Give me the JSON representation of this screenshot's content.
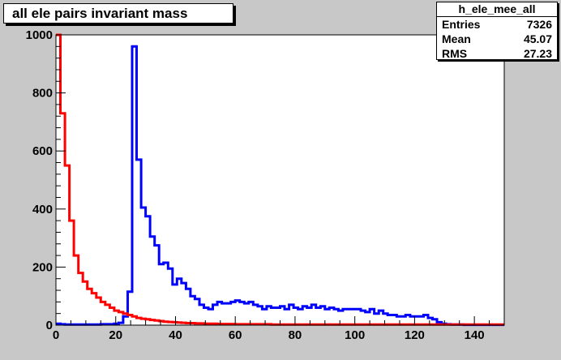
{
  "title": "all ele pairs invariant mass",
  "stats": {
    "name": "h_ele_mee_all",
    "rows": [
      {
        "label": "Entries",
        "value": "7326"
      },
      {
        "label": "Mean",
        "value": "45.07"
      },
      {
        "label": "RMS",
        "value": "27.23"
      }
    ]
  },
  "chart_data": {
    "type": "histogram",
    "title": "all ele pairs invariant mass",
    "xlim": [
      0,
      150
    ],
    "ylim": [
      0,
      1000
    ],
    "x_ticks": [
      "0",
      "20",
      "40",
      "60",
      "80",
      "100",
      "120",
      "140"
    ],
    "y_ticks": [
      "0",
      "200",
      "400",
      "600",
      "800",
      "1000"
    ],
    "bin_width": 1.5,
    "grid": false,
    "series": [
      {
        "color": "#0000ff",
        "values": [
          5,
          3,
          2,
          2,
          2,
          2,
          2,
          2,
          2,
          2,
          3,
          3,
          3,
          5,
          8,
          30,
          115,
          960,
          570,
          405,
          375,
          305,
          275,
          210,
          215,
          195,
          140,
          160,
          145,
          125,
          100,
          90,
          70,
          60,
          55,
          70,
          80,
          75,
          75,
          80,
          85,
          80,
          75,
          80,
          70,
          65,
          55,
          65,
          60,
          60,
          65,
          55,
          70,
          60,
          55,
          65,
          60,
          70,
          60,
          65,
          55,
          60,
          55,
          50,
          55,
          55,
          55,
          55,
          50,
          45,
          55,
          40,
          50,
          40,
          35,
          35,
          30,
          30,
          35,
          30,
          30,
          30,
          35,
          25,
          20,
          10,
          5,
          3,
          2,
          2,
          2,
          1,
          1,
          1,
          1,
          1,
          1,
          1,
          1,
          1
        ]
      },
      {
        "color": "#ff0000",
        "values": [
          1000,
          730,
          550,
          360,
          240,
          180,
          150,
          125,
          110,
          95,
          80,
          70,
          60,
          50,
          45,
          40,
          35,
          30,
          25,
          22,
          20,
          18,
          16,
          14,
          12,
          11,
          10,
          9,
          8,
          7,
          7,
          6,
          6,
          5,
          5,
          5,
          4,
          4,
          4,
          4,
          3,
          3,
          3,
          3,
          3,
          3,
          3,
          3,
          2,
          2,
          2,
          2,
          2,
          2,
          2,
          2,
          2,
          2,
          2,
          2,
          2,
          2,
          2,
          2,
          2,
          2,
          2,
          2,
          2,
          2,
          2,
          2,
          2,
          2,
          2,
          2,
          2,
          2,
          2,
          2,
          2,
          2,
          2,
          2,
          2,
          2,
          2,
          2,
          2,
          2,
          2,
          2,
          2,
          2,
          2,
          2,
          2,
          2,
          2,
          2
        ]
      }
    ]
  }
}
